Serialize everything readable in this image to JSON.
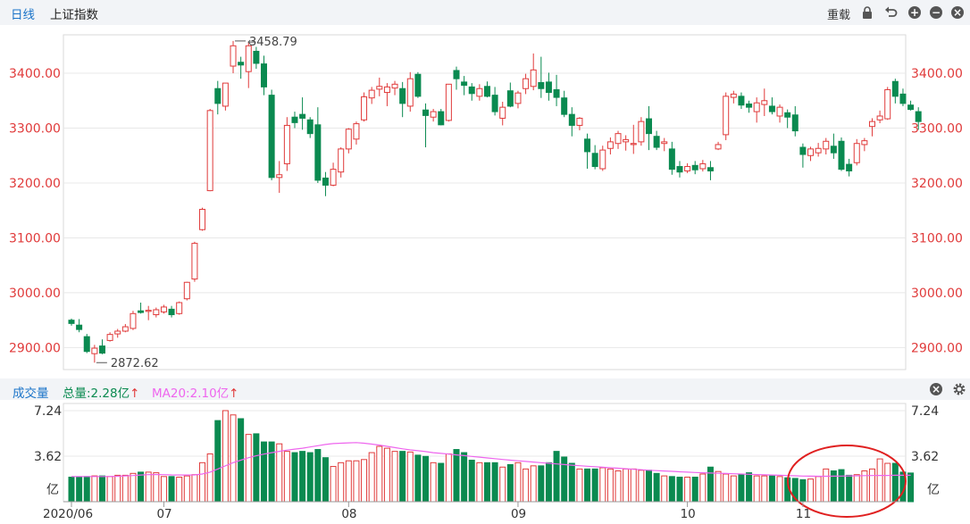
{
  "toolbar": {
    "tab_daily": "日线",
    "index_name": "上证指数",
    "reload_label": "重载",
    "active_color": "#1a73c8"
  },
  "volume_panel": {
    "title": "成交量",
    "total_label": "总量:2.28亿",
    "ma20_label": "MA20:2.10亿",
    "arrow": "↑",
    "ticks": [
      "7.24",
      "3.62",
      "亿"
    ]
  },
  "chart_data": {
    "type": "candlestick",
    "y_ticks": [
      "3400.00",
      "3300.00",
      "3200.00",
      "3100.00",
      "3000.00",
      "2900.00"
    ],
    "ylim": [
      2860,
      3470
    ],
    "x_labels": [
      "2020/06",
      "07",
      "08",
      "09",
      "10",
      "11"
    ],
    "annotations": {
      "high": "3458.79",
      "low": "2872.62"
    },
    "up_color": "#e03a3a",
    "down_color": "#0a8a50",
    "ma_color": "#ee66ee",
    "volume_unit": "亿",
    "volume_max": 7.24,
    "candles": [
      [
        2950,
        2953,
        2940,
        2944
      ],
      [
        2941,
        2952,
        2928,
        2933
      ],
      [
        2920,
        2925,
        2890,
        2893
      ],
      [
        2889,
        2905,
        2872.62,
        2899
      ],
      [
        2903,
        2915,
        2888,
        2890
      ],
      [
        2913,
        2928,
        2911,
        2924
      ],
      [
        2925,
        2934,
        2918,
        2930
      ],
      [
        2930,
        2943,
        2928,
        2938
      ],
      [
        2935,
        2967,
        2932,
        2962
      ],
      [
        2967,
        2982,
        2962,
        2964
      ],
      [
        2966,
        2976,
        2950,
        2968
      ],
      [
        2960,
        2973,
        2955,
        2969
      ],
      [
        2965,
        2978,
        2962,
        2974
      ],
      [
        2970,
        2976,
        2955,
        2960
      ],
      [
        2962,
        2984,
        2960,
        2982
      ],
      [
        2989,
        3020,
        2986,
        3019
      ],
      [
        3025,
        3093,
        3020,
        3090
      ],
      [
        3115,
        3155,
        3113,
        3152
      ],
      [
        3186,
        3335,
        3185,
        3332
      ],
      [
        3372,
        3386,
        3325,
        3345
      ],
      [
        3340,
        3380,
        3332,
        3382
      ],
      [
        3413,
        3458.79,
        3400,
        3450
      ],
      [
        3420,
        3430,
        3390,
        3415
      ],
      [
        3403,
        3456,
        3373,
        3450
      ],
      [
        3440,
        3448,
        3408,
        3418
      ],
      [
        3417,
        3432,
        3360,
        3375
      ],
      [
        3360,
        3370,
        3205,
        3210
      ],
      [
        3210,
        3240,
        3182,
        3215
      ],
      [
        3235,
        3320,
        3222,
        3305
      ],
      [
        3320,
        3330,
        3300,
        3310
      ],
      [
        3325,
        3356,
        3297,
        3318
      ],
      [
        3315,
        3320,
        3282,
        3290
      ],
      [
        3306,
        3338,
        3200,
        3205
      ],
      [
        3209,
        3220,
        3176,
        3196
      ],
      [
        3196,
        3237,
        3194,
        3225
      ],
      [
        3220,
        3265,
        3210,
        3262
      ],
      [
        3262,
        3300,
        3254,
        3298
      ],
      [
        3280,
        3312,
        3270,
        3308
      ],
      [
        3315,
        3365,
        3312,
        3357
      ],
      [
        3355,
        3375,
        3344,
        3369
      ],
      [
        3371,
        3392,
        3358,
        3376
      ],
      [
        3365,
        3382,
        3340,
        3375
      ],
      [
        3373,
        3386,
        3360,
        3380
      ],
      [
        3372,
        3384,
        3320,
        3345
      ],
      [
        3340,
        3402,
        3330,
        3390
      ],
      [
        3398,
        3402,
        3355,
        3358
      ],
      [
        3333,
        3345,
        3265,
        3323
      ],
      [
        3320,
        3335,
        3312,
        3330
      ],
      [
        3330,
        3335,
        3305,
        3306
      ],
      [
        3314,
        3380,
        3312,
        3380
      ],
      [
        3405,
        3412,
        3370,
        3390
      ],
      [
        3384,
        3395,
        3360,
        3378
      ],
      [
        3375,
        3382,
        3350,
        3363
      ],
      [
        3358,
        3380,
        3350,
        3372
      ],
      [
        3376,
        3385,
        3356,
        3358
      ],
      [
        3360,
        3375,
        3323,
        3330
      ],
      [
        3318,
        3348,
        3305,
        3338
      ],
      [
        3368,
        3383,
        3338,
        3340
      ],
      [
        3345,
        3368,
        3336,
        3364
      ],
      [
        3372,
        3399,
        3362,
        3390
      ],
      [
        3376,
        3436,
        3369,
        3406
      ],
      [
        3383,
        3430,
        3355,
        3372
      ],
      [
        3384,
        3401,
        3350,
        3365
      ],
      [
        3370,
        3397,
        3340,
        3356
      ],
      [
        3355,
        3368,
        3320,
        3325
      ],
      [
        3325,
        3338,
        3285,
        3305
      ],
      [
        3305,
        3320,
        3296,
        3318
      ],
      [
        3280,
        3290,
        3226,
        3257
      ],
      [
        3254,
        3269,
        3225,
        3230
      ],
      [
        3226,
        3268,
        3222,
        3260
      ],
      [
        3263,
        3283,
        3252,
        3275
      ],
      [
        3272,
        3295,
        3262,
        3290
      ],
      [
        3275,
        3287,
        3259,
        3279
      ],
      [
        3270,
        3306,
        3253,
        3272
      ],
      [
        3275,
        3320,
        3268,
        3312
      ],
      [
        3317,
        3340,
        3260,
        3290
      ],
      [
        3285,
        3295,
        3260,
        3265
      ],
      [
        3272,
        3282,
        3258,
        3275
      ],
      [
        3262,
        3275,
        3215,
        3225
      ],
      [
        3230,
        3240,
        3210,
        3220
      ],
      [
        3222,
        3236,
        3218,
        3230
      ],
      [
        3232,
        3240,
        3216,
        3224
      ],
      [
        3226,
        3242,
        3221,
        3235
      ],
      [
        3228,
        3240,
        3205,
        3222
      ],
      [
        3262,
        3275,
        3260,
        3270
      ],
      [
        3288,
        3365,
        3278,
        3358
      ],
      [
        3356,
        3368,
        3345,
        3362
      ],
      [
        3358,
        3365,
        3335,
        3342
      ],
      [
        3344,
        3350,
        3328,
        3338
      ],
      [
        3330,
        3356,
        3310,
        3346
      ],
      [
        3343,
        3372,
        3322,
        3350
      ],
      [
        3340,
        3356,
        3325,
        3330
      ],
      [
        3322,
        3343,
        3310,
        3338
      ],
      [
        3328,
        3334,
        3300,
        3320
      ],
      [
        3324,
        3340,
        3285,
        3295
      ],
      [
        3265,
        3272,
        3228,
        3252
      ],
      [
        3250,
        3266,
        3240,
        3262
      ],
      [
        3255,
        3273,
        3248,
        3263
      ],
      [
        3262,
        3282,
        3252,
        3276
      ],
      [
        3267,
        3290,
        3244,
        3255
      ],
      [
        3276,
        3283,
        3222,
        3225
      ],
      [
        3234,
        3244,
        3212,
        3222
      ],
      [
        3237,
        3280,
        3232,
        3272
      ],
      [
        3270,
        3282,
        3258,
        3277
      ],
      [
        3303,
        3318,
        3285,
        3312
      ],
      [
        3315,
        3332,
        3309,
        3322
      ],
      [
        3317,
        3375,
        3315,
        3370
      ],
      [
        3385,
        3390,
        3345,
        3358
      ],
      [
        3362,
        3372,
        3340,
        3345
      ],
      [
        3342,
        3350,
        3332,
        3334
      ],
      [
        3330,
        3338,
        3297,
        3312
      ]
    ],
    "volume": [
      1.95,
      1.95,
      2.0,
      2.05,
      2.05,
      2.0,
      2.1,
      2.1,
      2.25,
      2.35,
      2.35,
      2.3,
      2.0,
      2.0,
      1.95,
      2.05,
      2.15,
      3.1,
      3.8,
      6.45,
      7.24,
      6.9,
      6.6,
      5.35,
      5.4,
      4.75,
      4.75,
      4.6,
      4.0,
      3.9,
      4.0,
      3.9,
      4.15,
      3.5,
      2.8,
      3.1,
      3.25,
      3.25,
      3.35,
      3.9,
      4.4,
      4.25,
      4.0,
      4.0,
      3.95,
      3.7,
      3.6,
      3.1,
      3.05,
      3.8,
      4.15,
      3.9,
      3.3,
      3.1,
      3.1,
      3.1,
      2.75,
      2.95,
      3.1,
      2.6,
      2.85,
      2.85,
      3.1,
      4.0,
      3.55,
      3.05,
      2.6,
      2.6,
      2.6,
      2.7,
      2.6,
      2.45,
      2.6,
      2.6,
      2.5,
      2.5,
      2.25,
      2.05,
      2.0,
      1.95,
      1.95,
      1.95,
      2.2,
      2.75,
      2.4,
      2.2,
      2.05,
      2.15,
      2.3,
      2.05,
      2.05,
      2.05,
      2.0,
      1.9,
      1.85,
      1.75,
      1.8,
      2.0,
      2.6,
      2.45,
      2.55,
      2.1,
      2.15,
      2.45,
      2.6,
      3.4,
      3.05,
      3.05,
      2.35,
      2.28
    ],
    "ma20": [
      2.0,
      2.0,
      2.0,
      2.0,
      2.0,
      2.0,
      2.02,
      2.05,
      2.08,
      2.12,
      2.15,
      2.16,
      2.15,
      2.13,
      2.12,
      2.12,
      2.13,
      2.2,
      2.35,
      2.6,
      2.85,
      3.1,
      3.3,
      3.5,
      3.65,
      3.78,
      3.9,
      4.0,
      4.1,
      4.18,
      4.25,
      4.35,
      4.45,
      4.55,
      4.62,
      4.65,
      4.68,
      4.7,
      4.65,
      4.58,
      4.5,
      4.4,
      4.3,
      4.2,
      4.12,
      4.05,
      3.98,
      3.9,
      3.84,
      3.78,
      3.72,
      3.66,
      3.6,
      3.54,
      3.48,
      3.42,
      3.36,
      3.3,
      3.25,
      3.2,
      3.15,
      3.1,
      3.05,
      3.0,
      2.95,
      2.9,
      2.86,
      2.82,
      2.78,
      2.74,
      2.7,
      2.66,
      2.62,
      2.58,
      2.54,
      2.5,
      2.47,
      2.44,
      2.41,
      2.38,
      2.35,
      2.32,
      2.3,
      2.28,
      2.26,
      2.24,
      2.22,
      2.2,
      2.18,
      2.16,
      2.14,
      2.12,
      2.1,
      2.08,
      2.06,
      2.04,
      2.03,
      2.02,
      2.02,
      2.03,
      2.04,
      2.05,
      2.06,
      2.07,
      2.08,
      2.09,
      2.09,
      2.1,
      2.1,
      2.1
    ]
  }
}
